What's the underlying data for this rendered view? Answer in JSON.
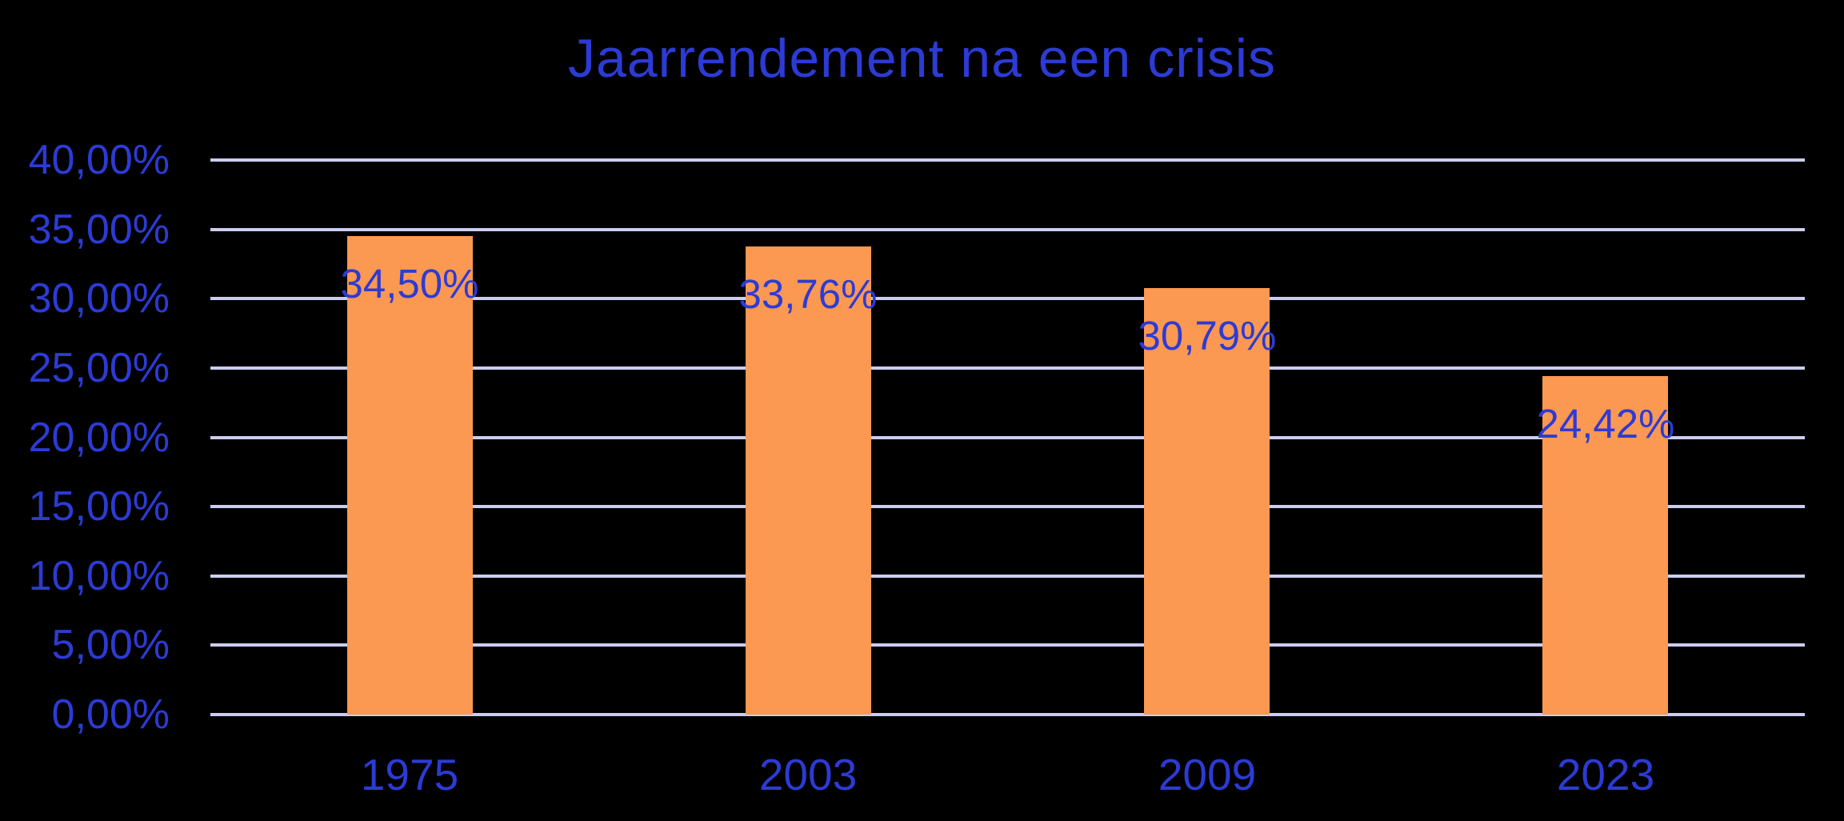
{
  "colors": {
    "background": "#000000",
    "text_blue": "#2C3BD5",
    "bar_orange": "#FB9851",
    "gridline": "#CACDEF"
  },
  "chart_data": {
    "type": "bar",
    "title": "Jaarrendement na een crisis",
    "categories": [
      "1975",
      "2003",
      "2009",
      "2023"
    ],
    "values": [
      34.5,
      33.76,
      30.79,
      24.42
    ],
    "data_labels": [
      "34,50%",
      "33,76%",
      "30,79%",
      "24,42%"
    ],
    "xlabel": "",
    "ylabel": "",
    "ylim": [
      0,
      40
    ],
    "y_tick_values": [
      0,
      5,
      10,
      15,
      20,
      25,
      30,
      35,
      40
    ],
    "y_tick_labels": [
      "0,00%",
      "5,00%",
      "10,00%",
      "15,00%",
      "20,00%",
      "25,00%",
      "30,00%",
      "35,00%",
      "40,00%"
    ],
    "grid": true,
    "legend_position": "none",
    "bar_color": "#FB9851",
    "label_color": "#2C3BD5"
  }
}
